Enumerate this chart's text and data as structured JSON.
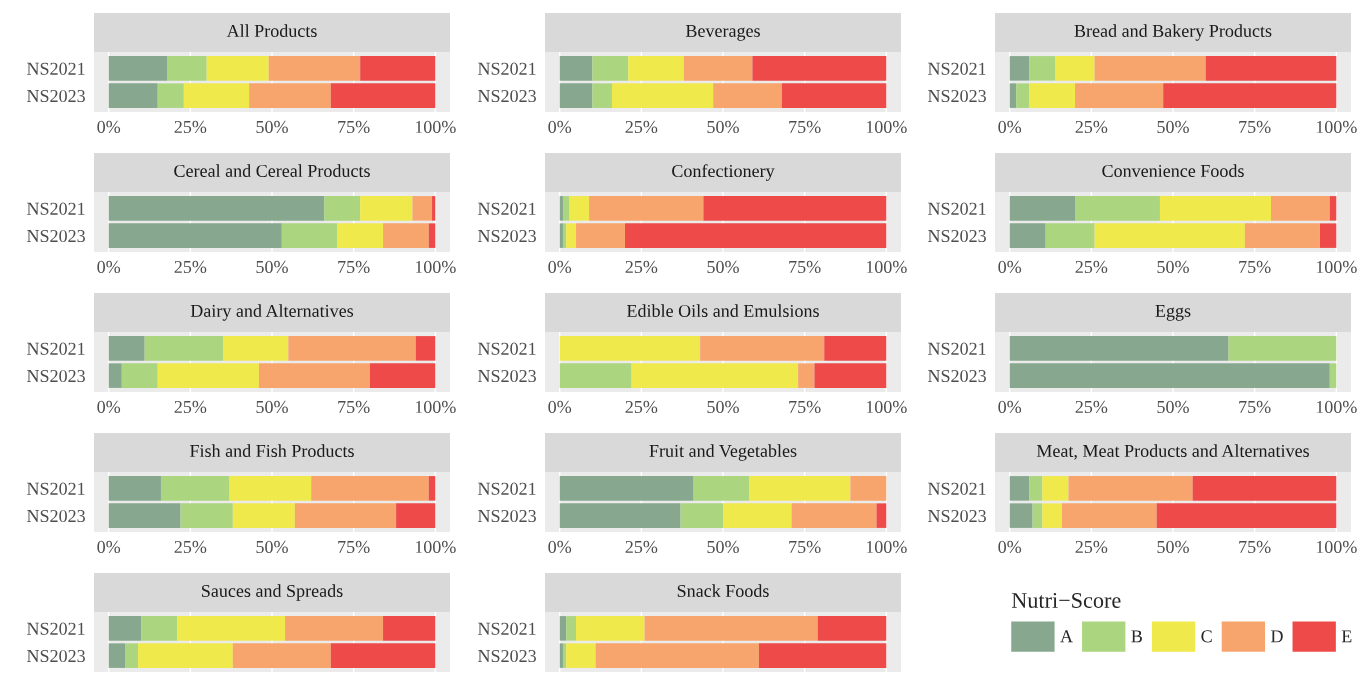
{
  "chart_data": [
    {
      "type": "bar",
      "orientation": "horizontal",
      "stacked": true,
      "title": "All Products",
      "categories": [
        "NS2021",
        "NS2023"
      ],
      "xlim": [
        0,
        100
      ],
      "xticks": [
        {
          "value": 0,
          "label": "0%"
        },
        {
          "value": 25,
          "label": "25%"
        },
        {
          "value": 50,
          "label": "50%"
        },
        {
          "value": 75,
          "label": "75%"
        },
        {
          "value": 100,
          "label": "100%"
        }
      ],
      "grid": "x",
      "series": [
        {
          "color": "#87a78f",
          "values": [
            18,
            15
          ]
        },
        {
          "color": "#abd57f",
          "values": [
            12,
            8
          ]
        },
        {
          "color": "#f0e94b",
          "values": [
            19,
            20
          ]
        },
        {
          "color": "#f7a56c",
          "values": [
            28,
            25
          ]
        },
        {
          "color": "#ee4a4a",
          "values": [
            23,
            32
          ]
        }
      ]
    },
    {
      "type": "bar",
      "orientation": "horizontal",
      "stacked": true,
      "title": "Beverages",
      "categories": [
        "NS2021",
        "NS2023"
      ],
      "xlim": [
        0,
        100
      ],
      "xticks": [
        {
          "value": 0,
          "label": "0%"
        },
        {
          "value": 25,
          "label": "25%"
        },
        {
          "value": 50,
          "label": "50%"
        },
        {
          "value": 75,
          "label": "75%"
        },
        {
          "value": 100,
          "label": "100%"
        }
      ],
      "grid": "x",
      "series": [
        {
          "color": "#87a78f",
          "values": [
            10,
            10
          ]
        },
        {
          "color": "#abd57f",
          "values": [
            11,
            6
          ]
        },
        {
          "color": "#f0e94b",
          "values": [
            17,
            31
          ]
        },
        {
          "color": "#f7a56c",
          "values": [
            21,
            21
          ]
        },
        {
          "color": "#ee4a4a",
          "values": [
            41,
            32
          ]
        }
      ]
    },
    {
      "type": "bar",
      "orientation": "horizontal",
      "stacked": true,
      "title": "Bread and Bakery Products",
      "categories": [
        "NS2021",
        "NS2023"
      ],
      "xlim": [
        0,
        100
      ],
      "xticks": [
        {
          "value": 0,
          "label": "0%"
        },
        {
          "value": 25,
          "label": "25%"
        },
        {
          "value": 50,
          "label": "50%"
        },
        {
          "value": 75,
          "label": "75%"
        },
        {
          "value": 100,
          "label": "100%"
        }
      ],
      "grid": "x",
      "series": [
        {
          "color": "#87a78f",
          "values": [
            6,
            2
          ]
        },
        {
          "color": "#abd57f",
          "values": [
            8,
            4
          ]
        },
        {
          "color": "#f0e94b",
          "values": [
            12,
            14
          ]
        },
        {
          "color": "#f7a56c",
          "values": [
            34,
            27
          ]
        },
        {
          "color": "#ee4a4a",
          "values": [
            40,
            53
          ]
        }
      ]
    },
    {
      "type": "bar",
      "orientation": "horizontal",
      "stacked": true,
      "title": "Cereal and Cereal Products",
      "categories": [
        "NS2021",
        "NS2023"
      ],
      "xlim": [
        0,
        100
      ],
      "xticks": [
        {
          "value": 0,
          "label": "0%"
        },
        {
          "value": 25,
          "label": "25%"
        },
        {
          "value": 50,
          "label": "50%"
        },
        {
          "value": 75,
          "label": "75%"
        },
        {
          "value": 100,
          "label": "100%"
        }
      ],
      "grid": "x",
      "series": [
        {
          "color": "#87a78f",
          "values": [
            66,
            53
          ]
        },
        {
          "color": "#abd57f",
          "values": [
            11,
            17
          ]
        },
        {
          "color": "#f0e94b",
          "values": [
            16,
            14
          ]
        },
        {
          "color": "#f7a56c",
          "values": [
            6,
            14
          ]
        },
        {
          "color": "#ee4a4a",
          "values": [
            1,
            2
          ]
        }
      ]
    },
    {
      "type": "bar",
      "orientation": "horizontal",
      "stacked": true,
      "title": "Confectionery",
      "categories": [
        "NS2021",
        "NS2023"
      ],
      "xlim": [
        0,
        100
      ],
      "xticks": [
        {
          "value": 0,
          "label": "0%"
        },
        {
          "value": 25,
          "label": "25%"
        },
        {
          "value": 50,
          "label": "50%"
        },
        {
          "value": 75,
          "label": "75%"
        },
        {
          "value": 100,
          "label": "100%"
        }
      ],
      "grid": "x",
      "series": [
        {
          "color": "#87a78f",
          "values": [
            1,
            1
          ]
        },
        {
          "color": "#abd57f",
          "values": [
            2,
            1
          ]
        },
        {
          "color": "#f0e94b",
          "values": [
            6,
            3
          ]
        },
        {
          "color": "#f7a56c",
          "values": [
            35,
            15
          ]
        },
        {
          "color": "#ee4a4a",
          "values": [
            56,
            80
          ]
        }
      ]
    },
    {
      "type": "bar",
      "orientation": "horizontal",
      "stacked": true,
      "title": "Convenience Foods",
      "categories": [
        "NS2021",
        "NS2023"
      ],
      "xlim": [
        0,
        100
      ],
      "xticks": [
        {
          "value": 0,
          "label": "0%"
        },
        {
          "value": 25,
          "label": "25%"
        },
        {
          "value": 50,
          "label": "50%"
        },
        {
          "value": 75,
          "label": "75%"
        },
        {
          "value": 100,
          "label": "100%"
        }
      ],
      "grid": "x",
      "series": [
        {
          "color": "#87a78f",
          "values": [
            20,
            11
          ]
        },
        {
          "color": "#abd57f",
          "values": [
            26,
            15
          ]
        },
        {
          "color": "#f0e94b",
          "values": [
            34,
            46
          ]
        },
        {
          "color": "#f7a56c",
          "values": [
            18,
            23
          ]
        },
        {
          "color": "#ee4a4a",
          "values": [
            2,
            5
          ]
        }
      ]
    },
    {
      "type": "bar",
      "orientation": "horizontal",
      "stacked": true,
      "title": "Dairy and Alternatives",
      "categories": [
        "NS2021",
        "NS2023"
      ],
      "xlim": [
        0,
        100
      ],
      "xticks": [
        {
          "value": 0,
          "label": "0%"
        },
        {
          "value": 25,
          "label": "25%"
        },
        {
          "value": 50,
          "label": "50%"
        },
        {
          "value": 75,
          "label": "75%"
        },
        {
          "value": 100,
          "label": "100%"
        }
      ],
      "grid": "x",
      "series": [
        {
          "color": "#87a78f",
          "values": [
            11,
            4
          ]
        },
        {
          "color": "#abd57f",
          "values": [
            24,
            11
          ]
        },
        {
          "color": "#f0e94b",
          "values": [
            20,
            31
          ]
        },
        {
          "color": "#f7a56c",
          "values": [
            39,
            34
          ]
        },
        {
          "color": "#ee4a4a",
          "values": [
            6,
            20
          ]
        }
      ]
    },
    {
      "type": "bar",
      "orientation": "horizontal",
      "stacked": true,
      "title": "Edible Oils and Emulsions",
      "categories": [
        "NS2021",
        "NS2023"
      ],
      "xlim": [
        0,
        100
      ],
      "xticks": [
        {
          "value": 0,
          "label": "0%"
        },
        {
          "value": 25,
          "label": "25%"
        },
        {
          "value": 50,
          "label": "50%"
        },
        {
          "value": 75,
          "label": "75%"
        },
        {
          "value": 100,
          "label": "100%"
        }
      ],
      "grid": "x",
      "series": [
        {
          "color": "#87a78f",
          "values": [
            0,
            0
          ]
        },
        {
          "color": "#abd57f",
          "values": [
            0,
            22
          ]
        },
        {
          "color": "#f0e94b",
          "values": [
            43,
            51
          ]
        },
        {
          "color": "#f7a56c",
          "values": [
            38,
            5
          ]
        },
        {
          "color": "#ee4a4a",
          "values": [
            19,
            22
          ]
        }
      ]
    },
    {
      "type": "bar",
      "orientation": "horizontal",
      "stacked": true,
      "title": "Eggs",
      "categories": [
        "NS2021",
        "NS2023"
      ],
      "xlim": [
        0,
        100
      ],
      "xticks": [
        {
          "value": 0,
          "label": "0%"
        },
        {
          "value": 25,
          "label": "25%"
        },
        {
          "value": 50,
          "label": "50%"
        },
        {
          "value": 75,
          "label": "75%"
        },
        {
          "value": 100,
          "label": "100%"
        }
      ],
      "grid": "x",
      "series": [
        {
          "color": "#87a78f",
          "values": [
            67,
            98
          ]
        },
        {
          "color": "#abd57f",
          "values": [
            33,
            2
          ]
        },
        {
          "color": "#f0e94b",
          "values": [
            0,
            0
          ]
        },
        {
          "color": "#f7a56c",
          "values": [
            0,
            0
          ]
        },
        {
          "color": "#ee4a4a",
          "values": [
            0,
            0
          ]
        }
      ]
    },
    {
      "type": "bar",
      "orientation": "horizontal",
      "stacked": true,
      "title": "Fish and Fish Products",
      "categories": [
        "NS2021",
        "NS2023"
      ],
      "xlim": [
        0,
        100
      ],
      "xticks": [
        {
          "value": 0,
          "label": "0%"
        },
        {
          "value": 25,
          "label": "25%"
        },
        {
          "value": 50,
          "label": "50%"
        },
        {
          "value": 75,
          "label": "75%"
        },
        {
          "value": 100,
          "label": "100%"
        }
      ],
      "grid": "x",
      "series": [
        {
          "color": "#87a78f",
          "values": [
            16,
            22
          ]
        },
        {
          "color": "#abd57f",
          "values": [
            21,
            16
          ]
        },
        {
          "color": "#f0e94b",
          "values": [
            25,
            19
          ]
        },
        {
          "color": "#f7a56c",
          "values": [
            36,
            31
          ]
        },
        {
          "color": "#ee4a4a",
          "values": [
            2,
            12
          ]
        }
      ]
    },
    {
      "type": "bar",
      "orientation": "horizontal",
      "stacked": true,
      "title": "Fruit and Vegetables",
      "categories": [
        "NS2021",
        "NS2023"
      ],
      "xlim": [
        0,
        100
      ],
      "xticks": [
        {
          "value": 0,
          "label": "0%"
        },
        {
          "value": 25,
          "label": "25%"
        },
        {
          "value": 50,
          "label": "50%"
        },
        {
          "value": 75,
          "label": "75%"
        },
        {
          "value": 100,
          "label": "100%"
        }
      ],
      "grid": "x",
      "series": [
        {
          "color": "#87a78f",
          "values": [
            41,
            37
          ]
        },
        {
          "color": "#abd57f",
          "values": [
            17,
            13
          ]
        },
        {
          "color": "#f0e94b",
          "values": [
            31,
            21
          ]
        },
        {
          "color": "#f7a56c",
          "values": [
            11,
            26
          ]
        },
        {
          "color": "#ee4a4a",
          "values": [
            0,
            3
          ]
        }
      ]
    },
    {
      "type": "bar",
      "orientation": "horizontal",
      "stacked": true,
      "title": "Meat, Meat Products and Alternatives",
      "categories": [
        "NS2021",
        "NS2023"
      ],
      "xlim": [
        0,
        100
      ],
      "xticks": [
        {
          "value": 0,
          "label": "0%"
        },
        {
          "value": 25,
          "label": "25%"
        },
        {
          "value": 50,
          "label": "50%"
        },
        {
          "value": 75,
          "label": "75%"
        },
        {
          "value": 100,
          "label": "100%"
        }
      ],
      "grid": "x",
      "series": [
        {
          "color": "#87a78f",
          "values": [
            6,
            7
          ]
        },
        {
          "color": "#abd57f",
          "values": [
            4,
            3
          ]
        },
        {
          "color": "#f0e94b",
          "values": [
            8,
            6
          ]
        },
        {
          "color": "#f7a56c",
          "values": [
            38,
            29
          ]
        },
        {
          "color": "#ee4a4a",
          "values": [
            44,
            55
          ]
        }
      ]
    },
    {
      "type": "bar",
      "orientation": "horizontal",
      "stacked": true,
      "title": "Sauces and Spreads",
      "categories": [
        "NS2021",
        "NS2023"
      ],
      "xlim": [
        0,
        100
      ],
      "xticks": [
        {
          "value": 0,
          "label": null
        },
        {
          "value": 25,
          "label": null
        },
        {
          "value": 50,
          "label": null
        },
        {
          "value": 75,
          "label": null
        },
        {
          "value": 100,
          "label": null
        }
      ],
      "tick_labels": "y",
      "grid": "x",
      "series": [
        {
          "color": "#87a78f",
          "values": [
            10,
            5
          ]
        },
        {
          "color": "#abd57f",
          "values": [
            11,
            4
          ]
        },
        {
          "color": "#f0e94b",
          "values": [
            33,
            29
          ]
        },
        {
          "color": "#f7a56c",
          "values": [
            30,
            30
          ]
        },
        {
          "color": "#ee4a4a",
          "values": [
            16,
            32
          ]
        }
      ]
    },
    {
      "type": "bar",
      "orientation": "horizontal",
      "stacked": true,
      "title": "Snack Foods",
      "categories": [
        "NS2021",
        "NS2023"
      ],
      "xlim": [
        0,
        100
      ],
      "xticks": [
        {
          "value": 0,
          "label": null
        },
        {
          "value": 25,
          "label": null
        },
        {
          "value": 50,
          "label": null
        },
        {
          "value": 75,
          "label": null
        },
        {
          "value": 100,
          "label": null
        }
      ],
      "tick_labels": "y",
      "grid": "x",
      "legend": "right",
      "legend_title": "Nutri−Score",
      "series": [
        {
          "name": "A",
          "color": "#87a78f",
          "values": [
            2,
            1
          ]
        },
        {
          "name": "B",
          "color": "#abd57f",
          "values": [
            3,
            1
          ]
        },
        {
          "name": "C",
          "color": "#f0e94b",
          "values": [
            21,
            9
          ]
        },
        {
          "name": "D",
          "color": "#f7a56c",
          "values": [
            53,
            50
          ]
        },
        {
          "name": "E",
          "color": "#ee4a4a",
          "values": [
            21,
            39
          ]
        }
      ]
    }
  ]
}
